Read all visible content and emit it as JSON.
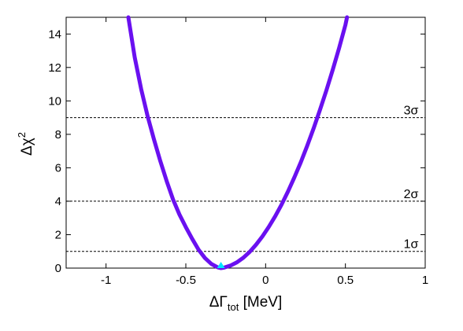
{
  "chart_data": {
    "type": "scatter",
    "xlabel_main": "ΔΓ",
    "xlabel_sub": "tot",
    "xlabel_unit": " [MeV]",
    "ylabel_main": "Δχ",
    "ylabel_sup": "2",
    "xlim": [
      -1.25,
      1.0
    ],
    "ylim": [
      0,
      15
    ],
    "x_ticks": [
      -1,
      -0.5,
      0,
      0.5,
      1
    ],
    "x_tick_labels": [
      "-1",
      "-0.5",
      "0",
      "0.5",
      "1"
    ],
    "y_ticks": [
      0,
      2,
      4,
      6,
      8,
      10,
      12,
      14
    ],
    "y_tick_labels": [
      "0",
      "2",
      "4",
      "6",
      "8",
      "10",
      "12",
      "14"
    ],
    "grid": false,
    "curve": {
      "color": "#6a10f0",
      "minimum_x": -0.28,
      "minimum_y": 0,
      "x": [
        -0.86,
        -0.82,
        -0.78,
        -0.74,
        -0.7,
        -0.66,
        -0.62,
        -0.58,
        -0.54,
        -0.5,
        -0.46,
        -0.42,
        -0.38,
        -0.34,
        -0.3,
        -0.28,
        -0.26,
        -0.22,
        -0.18,
        -0.14,
        -0.1,
        -0.06,
        -0.02,
        0.02,
        0.06,
        0.1,
        0.14,
        0.18,
        0.22,
        0.26,
        0.3,
        0.34,
        0.38,
        0.42,
        0.46,
        0.5,
        0.51
      ],
      "y": [
        15.0,
        12.6,
        10.7,
        9.1,
        7.7,
        6.4,
        5.2,
        4.1,
        3.2,
        2.45,
        1.75,
        1.1,
        0.6,
        0.25,
        0.04,
        0.0,
        0.03,
        0.15,
        0.35,
        0.62,
        0.97,
        1.4,
        1.9,
        2.47,
        3.1,
        3.8,
        4.58,
        5.42,
        6.32,
        7.3,
        8.33,
        9.44,
        10.6,
        11.85,
        13.15,
        14.55,
        15.0
      ]
    },
    "best_fit_marker": {
      "x": -0.28,
      "y": 0.0,
      "color": "#00e5ff"
    },
    "reference_lines": [
      {
        "y": 1,
        "label": "1σ"
      },
      {
        "y": 4,
        "label": "2σ"
      },
      {
        "y": 9,
        "label": "3σ"
      }
    ]
  }
}
